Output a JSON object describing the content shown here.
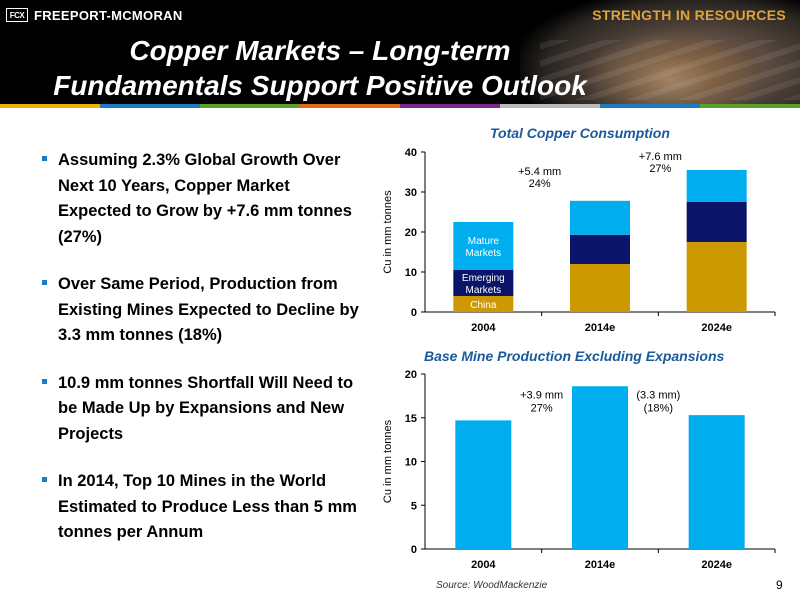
{
  "header": {
    "logo_mark": "FCX",
    "company": "FREEPORT-MCMORAN",
    "tagline": "STRENGTH IN RESOURCES",
    "title_line1": "Copper Markets – Long-term",
    "title_line2": "Fundamentals Support Positive Outlook"
  },
  "colors": {
    "header_bg": "#000000",
    "accent_blue": "#1f7bc1",
    "title_blue": "#1a5a9a",
    "mature": "#00aeef",
    "emerging": "#0a1468",
    "china": "#cc9900",
    "bar_blue": "#00aeef",
    "colorbar": [
      "#e8b400",
      "#1f7bc1",
      "#5aa02c",
      "#e06a1a",
      "#7a2a8a",
      "#b8b8b8",
      "#1f7bc1",
      "#5aa02c"
    ]
  },
  "bullets": [
    "Assuming 2.3% Global Growth Over Next 10 Years, Copper Market Expected to Grow by +7.6 mm tonnes (27%)",
    "Over Same Period, Production from Existing Mines Expected to Decline by 3.3 mm tonnes (18%)",
    "10.9 mm tonnes Shortfall Will Need to be Made Up by Expansions and New Projects",
    "In 2014, Top 10 Mines in the World Estimated to Produce Less than 5 mm tonnes per Annum"
  ],
  "chart_data": [
    {
      "type": "bar",
      "stacked": true,
      "title": "Total Copper Consumption",
      "ylabel": "Cu in mm tonnes",
      "ylim": [
        0,
        40
      ],
      "yticks": [
        0,
        10,
        20,
        30,
        40
      ],
      "categories": [
        "2004",
        "2014e",
        "2024e"
      ],
      "series": [
        {
          "name": "China",
          "values": [
            4.0,
            12.0,
            17.5
          ],
          "color_key": "china"
        },
        {
          "name": "Emerging Markets",
          "values": [
            6.5,
            7.3,
            10.0
          ],
          "color_key": "emerging"
        },
        {
          "name": "Mature Markets",
          "values": [
            12.0,
            8.5,
            8.0
          ],
          "color_key": "mature"
        }
      ],
      "inline_labels": [
        "Mature Markets",
        "Emerging Markets",
        "China"
      ],
      "annotations": [
        {
          "line1": "+5.4 mm",
          "line2": "24%"
        },
        {
          "line1": "+7.6 mm",
          "line2": "27%"
        }
      ]
    },
    {
      "type": "bar",
      "title": "Base Mine Production Excluding Expansions",
      "ylabel": "Cu in mm tonnes",
      "ylim": [
        0,
        20
      ],
      "yticks": [
        0,
        5,
        10,
        15,
        20
      ],
      "categories": [
        "2004",
        "2014e",
        "2024e"
      ],
      "values": [
        14.7,
        18.6,
        15.3
      ],
      "annotations": [
        {
          "line1": "+3.9 mm",
          "line2": "27%"
        },
        {
          "line1": "(3.3 mm)",
          "line2": "(18%)"
        }
      ]
    }
  ],
  "footer": {
    "source": "Source:  WoodMackenzie",
    "page": "9"
  }
}
